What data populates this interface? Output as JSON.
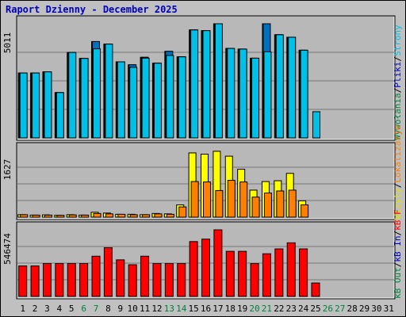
{
  "title": "Raport Dzienny -  December 2025",
  "colors": {
    "background": "#c0c0c0",
    "plot_bg": "#b8b8b8",
    "title": "#0000c0",
    "hits": "#008040",
    "files": "#0070c0",
    "pages": "#00c0e8",
    "visits": "#ffff00",
    "sites": "#ff8000",
    "kb_f": "#ff0000",
    "kb_in": "#0000ff",
    "kb_out": "#008000",
    "weekend": "#008040",
    "day": "#000080"
  },
  "side_labels": {
    "top": [
      {
        "text": "Wywołania",
        "color": "#008040"
      },
      {
        "text": "/",
        "color": "#000000"
      },
      {
        "text": "Pliki",
        "color": "#0000c0"
      },
      {
        "text": "/",
        "color": "#000000"
      },
      {
        "text": "Strony",
        "color": "#00c0e8"
      }
    ],
    "middle": [
      {
        "text": "Wizyty",
        "color": "#e0e000"
      },
      {
        "text": "/",
        "color": "#000000"
      },
      {
        "text": "Lokalizacje",
        "color": "#ff8000"
      }
    ],
    "bottom": [
      {
        "text": "kB Out",
        "color": "#008040"
      },
      {
        "text": "/",
        "color": "#000000"
      },
      {
        "text": "kB In",
        "color": "#0000c0"
      },
      {
        "text": "/",
        "color": "#000000"
      },
      {
        "text": "kB F",
        "color": "#ff0000"
      }
    ]
  },
  "chart_data": {
    "type": "bar",
    "title": "Raport Dzienny -  December 2025",
    "x": [
      1,
      2,
      3,
      4,
      5,
      6,
      7,
      8,
      9,
      10,
      11,
      12,
      13,
      14,
      15,
      16,
      17,
      18,
      19,
      20,
      21,
      22,
      23,
      24,
      25,
      26,
      27,
      28,
      29,
      30,
      31
    ],
    "x_tick_colors": [
      "#000000",
      "#000000",
      "#000000",
      "#000000",
      "#000000",
      "#008040",
      "#008040",
      "#000000",
      "#000000",
      "#000000",
      "#000000",
      "#000000",
      "#008040",
      "#008040",
      "#000000",
      "#000000",
      "#000000",
      "#000000",
      "#000000",
      "#008040",
      "#008040",
      "#000000",
      "#000000",
      "#000000",
      "#000000",
      "#008040",
      "#008040",
      "#000000",
      "#000000",
      "#000000",
      "#000000"
    ],
    "panels": [
      {
        "max_label": "5011",
        "ymax": 5011,
        "series": [
          {
            "name": "Wywołania",
            "color": "#008040",
            "values": [
              2850,
              2850,
              2900,
              1990,
              3750,
              3490,
              4230,
              4120,
              3340,
              3210,
              3540,
              3280,
              3800,
              3560,
              4740,
              4710,
              5011,
              3930,
              3900,
              3500,
              5011,
              4530,
              4420,
              3850,
              null,
              null,
              null,
              null,
              null,
              null,
              null
            ]
          },
          {
            "name": "Pliki",
            "color": "#0070c0",
            "values": [
              2850,
              2850,
              2900,
              1990,
              3750,
              3490,
              4230,
              4120,
              3340,
              3210,
              3540,
              3280,
              3800,
              3560,
              4740,
              4710,
              5011,
              3930,
              3900,
              3500,
              5011,
              4530,
              4420,
              3850,
              null,
              null,
              null,
              null,
              null,
              null,
              null
            ]
          },
          {
            "name": "Strony",
            "color": "#00c0e8",
            "values": [
              2850,
              2850,
              2900,
              1990,
              3750,
              3490,
              3910,
              4120,
              3340,
              3100,
              3500,
              3280,
              3620,
              3560,
              4740,
              4710,
              5011,
              3930,
              3900,
              3500,
              3780,
              4530,
              4420,
              3850,
              1150,
              null,
              null,
              null,
              null,
              null,
              null
            ]
          }
        ]
      },
      {
        "max_label": "1627",
        "ymax": 1627,
        "series": [
          {
            "name": "Wizyty",
            "color": "#ffff00",
            "values": [
              60,
              50,
              55,
              45,
              60,
              50,
              120,
              100,
              70,
              70,
              60,
              90,
              80,
              300,
              1570,
              1540,
              1610,
              1490,
              1170,
              660,
              870,
              890,
              1070,
              400,
              null,
              null,
              null,
              null,
              null,
              null,
              null
            ]
          },
          {
            "name": "Lokalizacje",
            "color": "#ff8000",
            "values": [
              60,
              50,
              50,
              45,
              55,
              50,
              90,
              80,
              70,
              60,
              60,
              80,
              70,
              250,
              870,
              860,
              650,
              900,
              860,
              490,
              590,
              640,
              660,
              300,
              null,
              null,
              null,
              null,
              null,
              null,
              null
            ]
          }
        ]
      },
      {
        "max_label": "546474",
        "ymax": 546474,
        "series": [
          {
            "name": "kB F",
            "color": "#ff0000",
            "values": [
              250000,
              250000,
              270000,
              270000,
              270000,
              270000,
              330000,
              400000,
              300000,
              260000,
              330000,
              270000,
              270000,
              270000,
              450000,
              470000,
              546474,
              370000,
              370000,
              270000,
              350000,
              390000,
              440000,
              390000,
              110000,
              null,
              null,
              null,
              null,
              null,
              null
            ]
          }
        ]
      }
    ]
  }
}
